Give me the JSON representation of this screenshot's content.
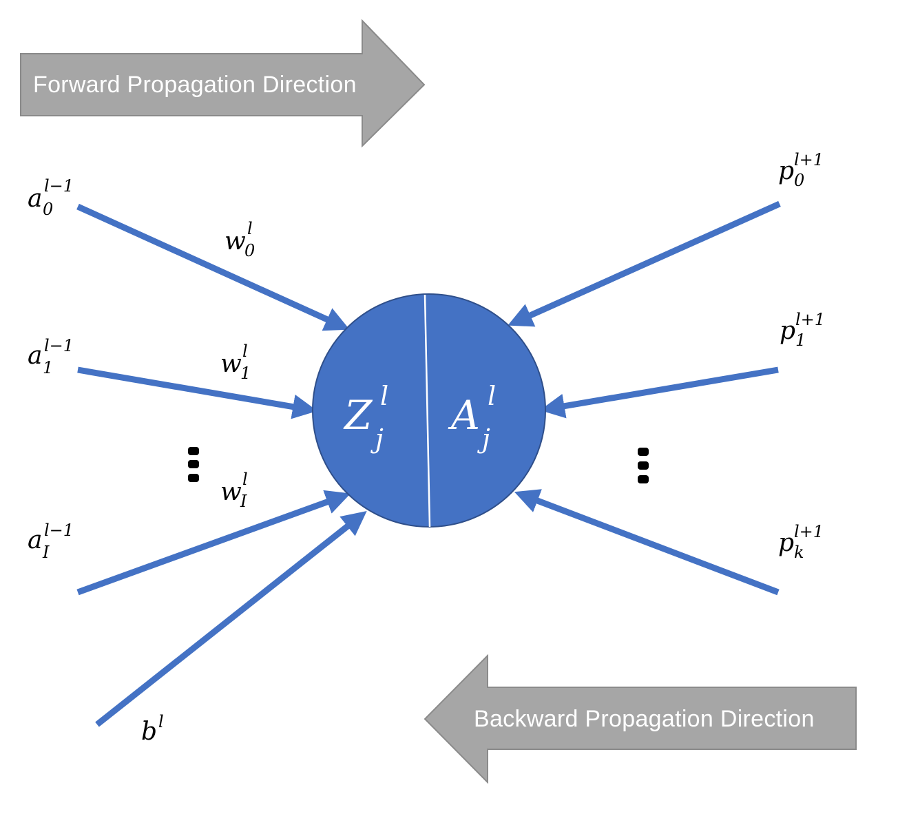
{
  "colors": {
    "edge": "#4472c4",
    "node_fill": "#4472c4",
    "node_stroke": "#2f4f8a",
    "banner_fill": "#a6a6a6",
    "banner_stroke": "#8a8a8a",
    "dots": "#000000"
  },
  "banners": {
    "forward": "Forward Propagation Direction",
    "backward": "Backward Propagation Direction"
  },
  "node": {
    "left": {
      "base": "Z",
      "sup": "l",
      "sub": "j"
    },
    "right": {
      "base": "A",
      "sup": "l",
      "sub": "j"
    }
  },
  "inputs": [
    {
      "base": "a",
      "sup": "l−1",
      "sub": "0"
    },
    {
      "base": "a",
      "sup": "l−1",
      "sub": "1"
    },
    {
      "base": "a",
      "sup": "l−1",
      "sub": "I"
    }
  ],
  "weights": [
    {
      "base": "w",
      "sup": "l",
      "sub": "0"
    },
    {
      "base": "w",
      "sup": "l",
      "sub": "1"
    },
    {
      "base": "w",
      "sup": "l",
      "sub": "I"
    }
  ],
  "bias": {
    "base": "b",
    "sup": "l"
  },
  "outputs": [
    {
      "base": "p",
      "sup": "l+1",
      "sub": "0"
    },
    {
      "base": "p",
      "sup": "l+1",
      "sub": "1"
    },
    {
      "base": "p",
      "sup": "l+1",
      "sub": "k"
    }
  ]
}
